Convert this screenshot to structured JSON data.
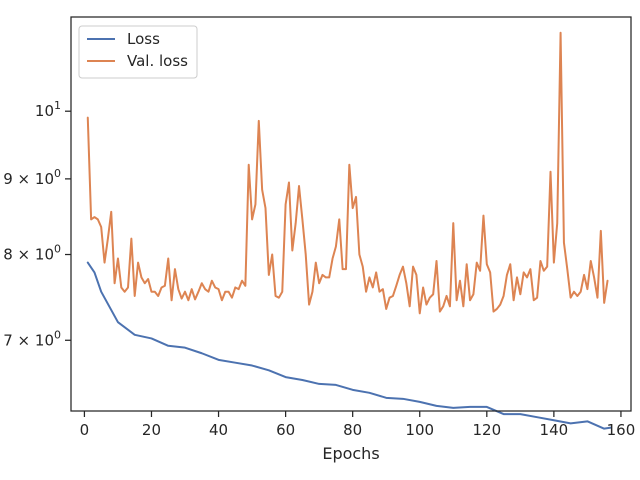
{
  "chart_data": {
    "type": "line",
    "xlabel": "Epochs",
    "ylabel": "",
    "y_scale": "log",
    "xlim": [
      -4,
      163
    ],
    "ylim": [
      6.27,
      11.58
    ],
    "x_ticks": [
      0,
      20,
      40,
      60,
      80,
      100,
      120,
      140,
      160
    ],
    "x_tick_labels": [
      "0",
      "20",
      "40",
      "60",
      "80",
      "100",
      "120",
      "140",
      "160"
    ],
    "y_ticks": [
      {
        "value": 7,
        "base": "7",
        "exp": "0"
      },
      {
        "value": 8,
        "base": "8",
        "exp": "0"
      },
      {
        "value": 9,
        "base": "9",
        "exp": "0"
      },
      {
        "value": 10,
        "base": "10",
        "exp": "1"
      }
    ],
    "grid": false,
    "legend_position": "top-left",
    "series": [
      {
        "name": "Loss",
        "color": "#4c72b0",
        "points": [
          [
            1,
            7.9
          ],
          [
            3,
            7.78
          ],
          [
            5,
            7.55
          ],
          [
            10,
            7.2
          ],
          [
            15,
            7.06
          ],
          [
            20,
            7.02
          ],
          [
            25,
            6.94
          ],
          [
            30,
            6.92
          ],
          [
            35,
            6.86
          ],
          [
            40,
            6.79
          ],
          [
            45,
            6.76
          ],
          [
            50,
            6.73
          ],
          [
            55,
            6.68
          ],
          [
            60,
            6.61
          ],
          [
            65,
            6.58
          ],
          [
            70,
            6.54
          ],
          [
            75,
            6.53
          ],
          [
            80,
            6.48
          ],
          [
            85,
            6.45
          ],
          [
            90,
            6.4
          ],
          [
            95,
            6.39
          ],
          [
            100,
            6.36
          ],
          [
            105,
            6.32
          ],
          [
            110,
            6.3
          ],
          [
            115,
            6.31
          ],
          [
            120,
            6.31
          ],
          [
            125,
            6.24
          ],
          [
            130,
            6.24
          ],
          [
            135,
            6.21
          ],
          [
            140,
            6.18
          ],
          [
            145,
            6.15
          ],
          [
            150,
            6.17
          ],
          [
            155,
            6.1
          ],
          [
            157,
            6.11
          ]
        ]
      },
      {
        "name": "Val. loss",
        "color": "#dd8452",
        "points": [
          [
            1,
            9.9
          ],
          [
            2,
            8.45
          ],
          [
            3,
            8.48
          ],
          [
            4,
            8.45
          ],
          [
            5,
            8.35
          ],
          [
            6,
            7.9
          ],
          [
            7,
            8.2
          ],
          [
            8,
            8.55
          ],
          [
            9,
            7.65
          ],
          [
            10,
            7.95
          ],
          [
            11,
            7.6
          ],
          [
            12,
            7.55
          ],
          [
            13,
            7.6
          ],
          [
            14,
            8.2
          ],
          [
            15,
            7.5
          ],
          [
            16,
            7.9
          ],
          [
            17,
            7.72
          ],
          [
            18,
            7.65
          ],
          [
            19,
            7.7
          ],
          [
            20,
            7.55
          ],
          [
            21,
            7.55
          ],
          [
            22,
            7.5
          ],
          [
            23,
            7.6
          ],
          [
            24,
            7.62
          ],
          [
            25,
            7.95
          ],
          [
            26,
            7.45
          ],
          [
            27,
            7.82
          ],
          [
            28,
            7.58
          ],
          [
            29,
            7.47
          ],
          [
            30,
            7.55
          ],
          [
            31,
            7.45
          ],
          [
            32,
            7.58
          ],
          [
            33,
            7.46
          ],
          [
            34,
            7.55
          ],
          [
            35,
            7.65
          ],
          [
            36,
            7.58
          ],
          [
            37,
            7.55
          ],
          [
            38,
            7.68
          ],
          [
            39,
            7.6
          ],
          [
            40,
            7.58
          ],
          [
            41,
            7.45
          ],
          [
            42,
            7.55
          ],
          [
            43,
            7.55
          ],
          [
            44,
            7.48
          ],
          [
            45,
            7.6
          ],
          [
            46,
            7.58
          ],
          [
            47,
            7.68
          ],
          [
            48,
            7.62
          ],
          [
            49,
            9.2
          ],
          [
            50,
            8.45
          ],
          [
            51,
            8.65
          ],
          [
            52,
            9.85
          ],
          [
            53,
            8.85
          ],
          [
            54,
            8.6
          ],
          [
            55,
            7.75
          ],
          [
            56,
            8.0
          ],
          [
            57,
            7.5
          ],
          [
            58,
            7.48
          ],
          [
            59,
            7.55
          ],
          [
            60,
            8.65
          ],
          [
            61,
            8.95
          ],
          [
            62,
            8.05
          ],
          [
            63,
            8.4
          ],
          [
            64,
            8.9
          ],
          [
            65,
            8.45
          ],
          [
            66,
            8.0
          ],
          [
            67,
            7.4
          ],
          [
            68,
            7.55
          ],
          [
            69,
            7.9
          ],
          [
            70,
            7.65
          ],
          [
            71,
            7.75
          ],
          [
            72,
            7.72
          ],
          [
            73,
            7.72
          ],
          [
            74,
            7.95
          ],
          [
            75,
            8.1
          ],
          [
            76,
            8.45
          ],
          [
            77,
            7.82
          ],
          [
            78,
            7.82
          ],
          [
            79,
            9.2
          ],
          [
            80,
            8.6
          ],
          [
            81,
            8.75
          ],
          [
            82,
            8.0
          ],
          [
            83,
            7.85
          ],
          [
            84,
            7.55
          ],
          [
            85,
            7.72
          ],
          [
            86,
            7.6
          ],
          [
            87,
            7.78
          ],
          [
            88,
            7.55
          ],
          [
            89,
            7.58
          ],
          [
            90,
            7.35
          ],
          [
            91,
            7.48
          ],
          [
            92,
            7.5
          ],
          [
            93,
            7.62
          ],
          [
            94,
            7.75
          ],
          [
            95,
            7.85
          ],
          [
            96,
            7.65
          ],
          [
            97,
            7.38
          ],
          [
            98,
            7.85
          ],
          [
            99,
            7.75
          ],
          [
            100,
            7.3
          ],
          [
            101,
            7.6
          ],
          [
            102,
            7.4
          ],
          [
            103,
            7.48
          ],
          [
            104,
            7.52
          ],
          [
            105,
            7.92
          ],
          [
            106,
            7.32
          ],
          [
            107,
            7.38
          ],
          [
            108,
            7.5
          ],
          [
            109,
            7.38
          ],
          [
            110,
            8.4
          ],
          [
            111,
            7.45
          ],
          [
            112,
            7.68
          ],
          [
            113,
            7.38
          ],
          [
            114,
            7.88
          ],
          [
            115,
            7.45
          ],
          [
            116,
            7.52
          ],
          [
            117,
            7.9
          ],
          [
            118,
            7.8
          ],
          [
            119,
            8.5
          ],
          [
            120,
            7.88
          ],
          [
            121,
            7.78
          ],
          [
            122,
            7.32
          ],
          [
            123,
            7.35
          ],
          [
            124,
            7.4
          ],
          [
            125,
            7.5
          ],
          [
            126,
            7.75
          ],
          [
            127,
            7.88
          ],
          [
            128,
            7.45
          ],
          [
            129,
            7.72
          ],
          [
            130,
            7.52
          ],
          [
            131,
            7.78
          ],
          [
            132,
            7.72
          ],
          [
            133,
            7.82
          ],
          [
            134,
            7.45
          ],
          [
            135,
            7.48
          ],
          [
            136,
            7.92
          ],
          [
            137,
            7.8
          ],
          [
            138,
            7.85
          ],
          [
            139,
            9.1
          ],
          [
            140,
            7.9
          ],
          [
            141,
            8.4
          ],
          [
            142,
            11.3
          ],
          [
            143,
            8.15
          ],
          [
            144,
            7.82
          ],
          [
            145,
            7.48
          ],
          [
            146,
            7.55
          ],
          [
            147,
            7.5
          ],
          [
            148,
            7.55
          ],
          [
            149,
            7.75
          ],
          [
            150,
            7.58
          ],
          [
            151,
            7.92
          ],
          [
            152,
            7.72
          ],
          [
            153,
            7.48
          ],
          [
            154,
            8.3
          ],
          [
            155,
            7.42
          ],
          [
            156,
            7.68
          ]
        ]
      }
    ]
  }
}
